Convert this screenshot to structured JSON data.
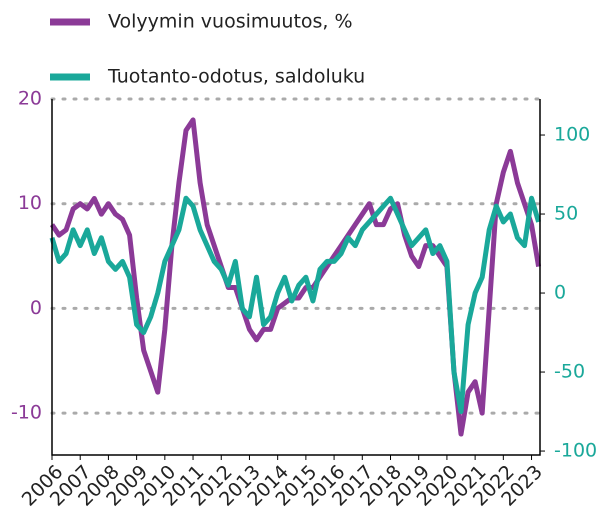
{
  "chart_data": {
    "type": "line",
    "x": [
      2006,
      2006.25,
      2006.5,
      2006.75,
      2007,
      2007.25,
      2007.5,
      2007.75,
      2008,
      2008.25,
      2008.5,
      2008.75,
      2009,
      2009.25,
      2009.5,
      2009.75,
      2010,
      2010.25,
      2010.5,
      2010.75,
      2011,
      2011.25,
      2011.5,
      2011.75,
      2012,
      2012.25,
      2012.5,
      2012.75,
      2013,
      2013.25,
      2013.5,
      2013.75,
      2014,
      2014.25,
      2014.5,
      2014.75,
      2015,
      2015.25,
      2015.5,
      2015.75,
      2016,
      2016.25,
      2016.5,
      2016.75,
      2017,
      2017.25,
      2017.5,
      2017.75,
      2018,
      2018.25,
      2018.5,
      2018.75,
      2019,
      2019.25,
      2019.5,
      2019.75,
      2020,
      2020.25,
      2020.5,
      2020.75,
      2021,
      2021.25,
      2021.5,
      2021.75,
      2022,
      2022.25,
      2022.5,
      2022.75,
      2023,
      2023.25
    ],
    "series": [
      {
        "name": "Volyymin vuosimuutos, %",
        "color": "#8b3a97",
        "axis": "y",
        "values": [
          8,
          7,
          7.5,
          9.5,
          10,
          9.5,
          10.5,
          9,
          10,
          9,
          8.5,
          7,
          1,
          -4,
          -6,
          -8,
          -2,
          6,
          12,
          17,
          18,
          12,
          8,
          6,
          4,
          2,
          2,
          0,
          -2,
          -3,
          -2,
          -2,
          0,
          0.5,
          1,
          1,
          2,
          2,
          3,
          4,
          5,
          6,
          7,
          8,
          9,
          10,
          8,
          8,
          9.5,
          10,
          7,
          5,
          4,
          6,
          6,
          5,
          4,
          -6,
          -12,
          -8,
          -7,
          -10,
          0,
          10,
          13,
          15,
          12,
          10,
          8,
          4
        ]
      },
      {
        "name": "Tuotanto-odotus, saldoluku",
        "color": "#1aa89a",
        "axis": "y2",
        "values": [
          35,
          20,
          25,
          40,
          30,
          40,
          25,
          35,
          20,
          15,
          20,
          10,
          -20,
          -25,
          -15,
          0,
          20,
          30,
          40,
          60,
          55,
          40,
          30,
          20,
          15,
          5,
          20,
          -10,
          -15,
          10,
          -20,
          -15,
          0,
          10,
          -5,
          5,
          10,
          -5,
          15,
          20,
          20,
          25,
          35,
          30,
          40,
          45,
          50,
          55,
          60,
          50,
          40,
          30,
          35,
          40,
          25,
          30,
          20,
          -50,
          -75,
          -20,
          0,
          10,
          40,
          55,
          45,
          50,
          35,
          30,
          60,
          45
        ]
      }
    ],
    "xlim": [
      2006,
      2023.3
    ],
    "xticks": [
      2006,
      2007,
      2008,
      2009,
      2010,
      2011,
      2012,
      2013,
      2014,
      2015,
      2016,
      2017,
      2018,
      2019,
      2020,
      2021,
      2022,
      2023
    ],
    "ylim": [
      -14,
      20
    ],
    "yticks": [
      -10,
      0,
      10,
      20
    ],
    "y2lim": [
      -102.5,
      122.8
    ],
    "y2ticks": [
      -100,
      -50,
      0,
      50,
      100
    ],
    "grid": true
  }
}
